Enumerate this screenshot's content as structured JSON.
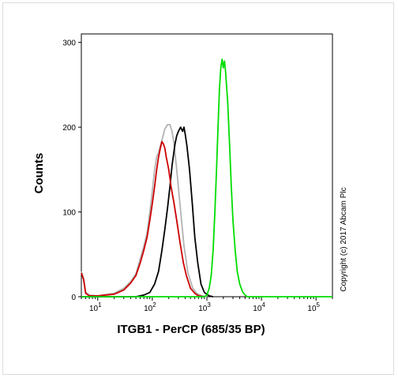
{
  "chart_data": {
    "type": "line",
    "title": "",
    "xlabel": "ITGB1 - PerCP (685/35 BP)",
    "ylabel": "Counts",
    "x_scale": "log",
    "xlim": [
      5,
      200000
    ],
    "ylim": [
      0,
      310
    ],
    "y_ticks": [
      {
        "value": 0,
        "label": "0"
      },
      {
        "value": 100,
        "label": "100"
      },
      {
        "value": 200,
        "label": "200"
      },
      {
        "value": 300,
        "label": "300"
      }
    ],
    "x_ticks": [
      {
        "value": 10,
        "base": "10",
        "exp": "1"
      },
      {
        "value": 100,
        "base": "10",
        "exp": "2"
      },
      {
        "value": 1000,
        "base": "10",
        "exp": "3"
      },
      {
        "value": 10000,
        "base": "10",
        "exp": "4"
      },
      {
        "value": 100000,
        "base": "10",
        "exp": "5"
      }
    ],
    "grid": false,
    "legend": "none",
    "annotation": "Copyright (c) 2017 Abcam Plc",
    "series": [
      {
        "color": "#b3b3b3",
        "points": [
          [
            5,
            30
          ],
          [
            5.5,
            22
          ],
          [
            6,
            5
          ],
          [
            7,
            2
          ],
          [
            10,
            1
          ],
          [
            20,
            4
          ],
          [
            30,
            10
          ],
          [
            40,
            18
          ],
          [
            50,
            27
          ],
          [
            60,
            45
          ],
          [
            70,
            60
          ],
          [
            80,
            75
          ],
          [
            90,
            100
          ],
          [
            100,
            125
          ],
          [
            110,
            150
          ],
          [
            120,
            165
          ],
          [
            130,
            170
          ],
          [
            150,
            185
          ],
          [
            170,
            198
          ],
          [
            190,
            203
          ],
          [
            210,
            203
          ],
          [
            230,
            195
          ],
          [
            250,
            180
          ],
          [
            280,
            150
          ],
          [
            320,
            110
          ],
          [
            380,
            60
          ],
          [
            450,
            28
          ],
          [
            550,
            10
          ],
          [
            650,
            4
          ],
          [
            800,
            1
          ],
          [
            1000,
            0
          ]
        ]
      },
      {
        "color": "#000000",
        "points": [
          [
            5,
            0
          ],
          [
            50,
            0
          ],
          [
            70,
            2
          ],
          [
            90,
            5
          ],
          [
            110,
            15
          ],
          [
            130,
            30
          ],
          [
            150,
            55
          ],
          [
            170,
            80
          ],
          [
            190,
            105
          ],
          [
            210,
            130
          ],
          [
            230,
            155
          ],
          [
            260,
            180
          ],
          [
            280,
            190
          ],
          [
            300,
            195
          ],
          [
            330,
            200
          ],
          [
            360,
            195
          ],
          [
            380,
            200
          ],
          [
            400,
            192
          ],
          [
            430,
            178
          ],
          [
            480,
            150
          ],
          [
            540,
            110
          ],
          [
            600,
            70
          ],
          [
            680,
            40
          ],
          [
            780,
            15
          ],
          [
            900,
            5
          ],
          [
            1100,
            1
          ],
          [
            1300,
            0
          ]
        ]
      },
      {
        "color": "#cc0000",
        "points": [
          [
            5,
            28
          ],
          [
            5.5,
            20
          ],
          [
            6,
            4
          ],
          [
            7,
            1
          ],
          [
            10,
            1
          ],
          [
            20,
            3
          ],
          [
            30,
            8
          ],
          [
            40,
            16
          ],
          [
            50,
            25
          ],
          [
            60,
            40
          ],
          [
            70,
            55
          ],
          [
            80,
            70
          ],
          [
            90,
            90
          ],
          [
            100,
            110
          ],
          [
            110,
            130
          ],
          [
            120,
            150
          ],
          [
            130,
            165
          ],
          [
            140,
            175
          ],
          [
            150,
            183
          ],
          [
            160,
            180
          ],
          [
            170,
            175
          ],
          [
            180,
            165
          ],
          [
            200,
            150
          ],
          [
            220,
            130
          ],
          [
            250,
            110
          ],
          [
            280,
            90
          ],
          [
            320,
            65
          ],
          [
            370,
            40
          ],
          [
            420,
            25
          ],
          [
            500,
            10
          ],
          [
            600,
            4
          ],
          [
            700,
            1
          ],
          [
            900,
            0
          ]
        ]
      },
      {
        "color": "#00dd00",
        "points": [
          [
            5,
            0
          ],
          [
            900,
            0
          ],
          [
            1000,
            2
          ],
          [
            1100,
            10
          ],
          [
            1200,
            25
          ],
          [
            1300,
            55
          ],
          [
            1400,
            100
          ],
          [
            1500,
            150
          ],
          [
            1600,
            200
          ],
          [
            1700,
            245
          ],
          [
            1800,
            270
          ],
          [
            1900,
            280
          ],
          [
            2000,
            270
          ],
          [
            2100,
            278
          ],
          [
            2200,
            265
          ],
          [
            2400,
            230
          ],
          [
            2600,
            180
          ],
          [
            2800,
            130
          ],
          [
            3000,
            90
          ],
          [
            3300,
            55
          ],
          [
            3600,
            30
          ],
          [
            4000,
            15
          ],
          [
            4500,
            6
          ],
          [
            5000,
            2
          ],
          [
            5500,
            0
          ],
          [
            200000,
            0
          ]
        ]
      }
    ]
  }
}
